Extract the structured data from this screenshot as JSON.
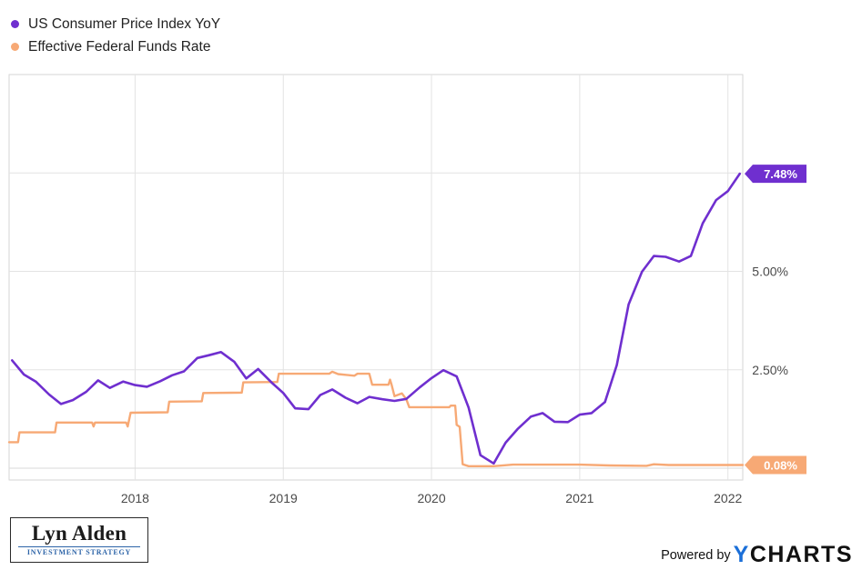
{
  "legend": {
    "series1": "US Consumer Price Index YoY",
    "series2": "Effective Federal Funds Rate"
  },
  "colors": {
    "cpi": "#6f2fcf",
    "fed_funds": "#f7a975",
    "grid": "#e3e3e3",
    "ycharts_blue": "#1b6fd8"
  },
  "logo": {
    "name": "Lyn Alden",
    "subtitle": "INVESTMENT STRATEGY"
  },
  "footer": {
    "powered_by": "Powered by",
    "brand_y": "Y",
    "brand_rest": "CHARTS"
  },
  "chart_data": {
    "type": "line",
    "title": "",
    "xlabel": "",
    "ylabel": "",
    "x_ticks": [
      "2018",
      "2019",
      "2020",
      "2021",
      "2022"
    ],
    "y_ticks": [
      "2.50%",
      "5.00%",
      "7.50%"
    ],
    "ylim": [
      -0.3,
      10.0
    ],
    "xlim": [
      2017.15,
      2022.1
    ],
    "grid": true,
    "legend_position": "top-left",
    "end_labels": [
      "7.48%",
      "0.08%"
    ],
    "series": [
      {
        "name": "US Consumer Price Index YoY",
        "color": "#6f2fcf",
        "points": [
          [
            2017.17,
            2.74
          ],
          [
            2017.25,
            2.38
          ],
          [
            2017.33,
            2.2
          ],
          [
            2017.42,
            1.87
          ],
          [
            2017.5,
            1.63
          ],
          [
            2017.58,
            1.73
          ],
          [
            2017.67,
            1.94
          ],
          [
            2017.75,
            2.23
          ],
          [
            2017.83,
            2.04
          ],
          [
            2017.92,
            2.2
          ],
          [
            2018.0,
            2.11
          ],
          [
            2018.08,
            2.07
          ],
          [
            2018.17,
            2.21
          ],
          [
            2018.25,
            2.36
          ],
          [
            2018.33,
            2.46
          ],
          [
            2018.42,
            2.8
          ],
          [
            2018.5,
            2.87
          ],
          [
            2018.58,
            2.95
          ],
          [
            2018.67,
            2.7
          ],
          [
            2018.75,
            2.28
          ],
          [
            2018.83,
            2.52
          ],
          [
            2018.92,
            2.18
          ],
          [
            2019.0,
            1.91
          ],
          [
            2019.08,
            1.52
          ],
          [
            2019.17,
            1.5
          ],
          [
            2019.25,
            1.86
          ],
          [
            2019.33,
            2.0
          ],
          [
            2019.42,
            1.79
          ],
          [
            2019.5,
            1.65
          ],
          [
            2019.58,
            1.81
          ],
          [
            2019.67,
            1.75
          ],
          [
            2019.75,
            1.71
          ],
          [
            2019.83,
            1.76
          ],
          [
            2019.92,
            2.05
          ],
          [
            2020.0,
            2.29
          ],
          [
            2020.08,
            2.49
          ],
          [
            2020.17,
            2.33
          ],
          [
            2020.25,
            1.54
          ],
          [
            2020.33,
            0.33
          ],
          [
            2020.42,
            0.12
          ],
          [
            2020.5,
            0.65
          ],
          [
            2020.58,
            0.99
          ],
          [
            2020.67,
            1.31
          ],
          [
            2020.75,
            1.4
          ],
          [
            2020.83,
            1.18
          ],
          [
            2020.92,
            1.17
          ],
          [
            2021.0,
            1.36
          ],
          [
            2021.08,
            1.4
          ],
          [
            2021.17,
            1.68
          ],
          [
            2021.25,
            2.62
          ],
          [
            2021.33,
            4.16
          ],
          [
            2021.42,
            4.99
          ],
          [
            2021.5,
            5.39
          ],
          [
            2021.58,
            5.37
          ],
          [
            2021.67,
            5.25
          ],
          [
            2021.75,
            5.39
          ],
          [
            2021.83,
            6.22
          ],
          [
            2021.92,
            6.81
          ],
          [
            2022.0,
            7.04
          ],
          [
            2022.08,
            7.48
          ]
        ]
      },
      {
        "name": "Effective Federal Funds Rate",
        "color": "#f7a975",
        "points": [
          [
            2017.15,
            0.66
          ],
          [
            2017.21,
            0.66
          ],
          [
            2017.22,
            0.91
          ],
          [
            2017.46,
            0.91
          ],
          [
            2017.47,
            1.16
          ],
          [
            2017.71,
            1.16
          ],
          [
            2017.72,
            1.06
          ],
          [
            2017.73,
            1.16
          ],
          [
            2017.94,
            1.16
          ],
          [
            2017.95,
            1.06
          ],
          [
            2017.97,
            1.41
          ],
          [
            2018.22,
            1.42
          ],
          [
            2018.23,
            1.69
          ],
          [
            2018.45,
            1.7
          ],
          [
            2018.46,
            1.91
          ],
          [
            2018.72,
            1.92
          ],
          [
            2018.73,
            2.18
          ],
          [
            2018.96,
            2.19
          ],
          [
            2018.97,
            2.4
          ],
          [
            2019.31,
            2.4
          ],
          [
            2019.33,
            2.45
          ],
          [
            2019.37,
            2.39
          ],
          [
            2019.48,
            2.35
          ],
          [
            2019.5,
            2.4
          ],
          [
            2019.58,
            2.4
          ],
          [
            2019.6,
            2.12
          ],
          [
            2019.71,
            2.12
          ],
          [
            2019.72,
            2.25
          ],
          [
            2019.73,
            2.13
          ],
          [
            2019.75,
            1.83
          ],
          [
            2019.8,
            1.9
          ],
          [
            2019.83,
            1.75
          ],
          [
            2019.85,
            1.55
          ],
          [
            2020.12,
            1.55
          ],
          [
            2020.13,
            1.59
          ],
          [
            2020.16,
            1.59
          ],
          [
            2020.17,
            1.1
          ],
          [
            2020.19,
            1.05
          ],
          [
            2020.21,
            0.1
          ],
          [
            2020.25,
            0.05
          ],
          [
            2020.42,
            0.05
          ],
          [
            2020.55,
            0.09
          ],
          [
            2020.8,
            0.09
          ],
          [
            2021.0,
            0.09
          ],
          [
            2021.2,
            0.07
          ],
          [
            2021.45,
            0.06
          ],
          [
            2021.5,
            0.1
          ],
          [
            2021.6,
            0.08
          ],
          [
            2021.9,
            0.08
          ],
          [
            2022.1,
            0.08
          ]
        ]
      }
    ]
  }
}
